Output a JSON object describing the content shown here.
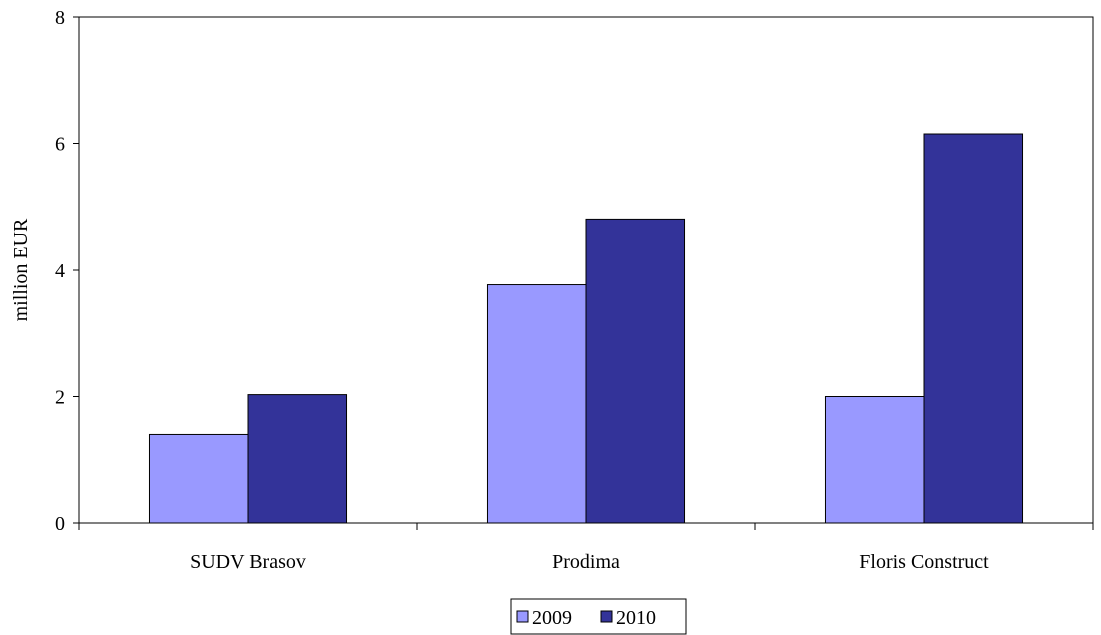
{
  "chart_data": {
    "type": "bar",
    "categories": [
      "SUDV Brasov",
      "Prodima",
      "Floris Construct"
    ],
    "series": [
      {
        "name": "2009",
        "values": [
          1.4,
          3.77,
          2.0
        ],
        "color": "#9999ff"
      },
      {
        "name": "2010",
        "values": [
          2.03,
          4.8,
          6.15
        ],
        "color": "#333399"
      }
    ],
    "title": "",
    "xlabel": "",
    "ylabel": "million EUR",
    "ylim": [
      0,
      8
    ],
    "yticks": [
      "0",
      "2",
      "4",
      "6",
      "8"
    ],
    "grid": false,
    "legend": "bottom-center"
  }
}
